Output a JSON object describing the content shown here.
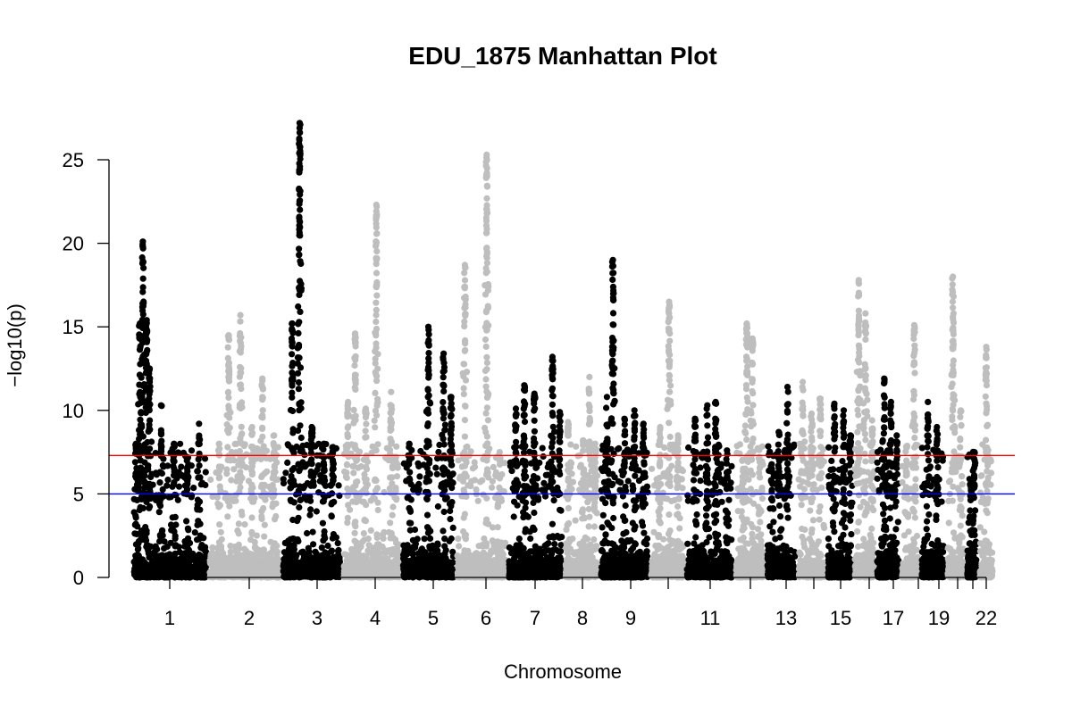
{
  "chart_data": {
    "type": "scatter",
    "title": "EDU_1875 Manhattan Plot",
    "xlabel": "Chromosome",
    "ylabel": "−log10(p)",
    "ylim": [
      0,
      27.5
    ],
    "y_ticks": [
      0,
      5,
      10,
      15,
      20,
      25
    ],
    "x_tick_labels": [
      "1",
      "2",
      "3",
      "4",
      "5",
      "6",
      "7",
      "8",
      "9",
      "",
      "11",
      "",
      "13",
      "",
      "15",
      "",
      "17",
      "",
      "19",
      "",
      "",
      "22"
    ],
    "colors": [
      "#000000",
      "#bebebe"
    ],
    "suggestive_line": {
      "y": 5.0,
      "color": "#0000ff"
    },
    "genomewide_line": {
      "y": 7.3,
      "color": "#ff0000"
    },
    "grid": false,
    "series": [
      {
        "chromosome": "1",
        "peaks": [
          {
            "x": 0.14,
            "y": 20.1
          },
          {
            "x": 0.1,
            "y": 15.2
          },
          {
            "x": 0.19,
            "y": 15.4
          },
          {
            "x": 0.23,
            "y": 12.5
          },
          {
            "x": 0.38,
            "y": 10.3
          },
          {
            "x": 0.05,
            "y": 8.0
          },
          {
            "x": 0.55,
            "y": 8.0
          },
          {
            "x": 0.72,
            "y": 7.0
          },
          {
            "x": 0.88,
            "y": 9.2
          }
        ]
      },
      {
        "chromosome": "2",
        "peaks": [
          {
            "x": 0.15,
            "y": 8.0
          },
          {
            "x": 0.28,
            "y": 14.5
          },
          {
            "x": 0.44,
            "y": 15.7
          },
          {
            "x": 0.6,
            "y": 9.0
          },
          {
            "x": 0.74,
            "y": 11.9
          },
          {
            "x": 0.9,
            "y": 8.5
          }
        ]
      },
      {
        "chromosome": "3",
        "peaks": [
          {
            "x": 0.18,
            "y": 15.2
          },
          {
            "x": 0.3,
            "y": 27.2
          },
          {
            "x": 0.5,
            "y": 9.0
          },
          {
            "x": 0.7,
            "y": 8.0
          },
          {
            "x": 0.85,
            "y": 7.8
          }
        ]
      },
      {
        "chromosome": "4",
        "peaks": [
          {
            "x": 0.1,
            "y": 10.5
          },
          {
            "x": 0.22,
            "y": 14.6
          },
          {
            "x": 0.4,
            "y": 10.1
          },
          {
            "x": 0.58,
            "y": 22.3
          },
          {
            "x": 0.83,
            "y": 11.1
          }
        ]
      },
      {
        "chromosome": "5",
        "peaks": [
          {
            "x": 0.15,
            "y": 8.0
          },
          {
            "x": 0.5,
            "y": 15.0
          },
          {
            "x": 0.78,
            "y": 13.4
          },
          {
            "x": 0.92,
            "y": 10.8
          }
        ]
      },
      {
        "chromosome": "6",
        "peaks": [
          {
            "x": 0.18,
            "y": 18.7
          },
          {
            "x": 0.6,
            "y": 25.3
          },
          {
            "x": 0.85,
            "y": 7.5
          }
        ]
      },
      {
        "chromosome": "7",
        "peaks": [
          {
            "x": 0.15,
            "y": 10.1
          },
          {
            "x": 0.3,
            "y": 11.5
          },
          {
            "x": 0.48,
            "y": 11.0
          },
          {
            "x": 0.8,
            "y": 13.2
          },
          {
            "x": 0.93,
            "y": 9.9
          }
        ]
      },
      {
        "chromosome": "8",
        "peaks": [
          {
            "x": 0.12,
            "y": 9.3
          },
          {
            "x": 0.55,
            "y": 8.2
          },
          {
            "x": 0.72,
            "y": 12.0
          },
          {
            "x": 0.88,
            "y": 8.0
          }
        ]
      },
      {
        "chromosome": "9",
        "peaks": [
          {
            "x": 0.15,
            "y": 10.8
          },
          {
            "x": 0.27,
            "y": 19.0
          },
          {
            "x": 0.5,
            "y": 9.5
          },
          {
            "x": 0.7,
            "y": 10.0
          },
          {
            "x": 0.88,
            "y": 9.2
          }
        ]
      },
      {
        "chromosome": "10",
        "peaks": [
          {
            "x": 0.3,
            "y": 9.0
          },
          {
            "x": 0.55,
            "y": 16.5
          },
          {
            "x": 0.8,
            "y": 8.5
          }
        ]
      },
      {
        "chromosome": "11",
        "peaks": [
          {
            "x": 0.2,
            "y": 9.5
          },
          {
            "x": 0.45,
            "y": 10.3
          },
          {
            "x": 0.62,
            "y": 10.5
          },
          {
            "x": 0.85,
            "y": 7.6
          }
        ]
      },
      {
        "chromosome": "12",
        "peaks": [
          {
            "x": 0.28,
            "y": 6.5
          },
          {
            "x": 0.4,
            "y": 15.2
          },
          {
            "x": 0.58,
            "y": 14.3
          },
          {
            "x": 0.8,
            "y": 7.2
          }
        ]
      },
      {
        "chromosome": "13",
        "peaks": [
          {
            "x": 0.2,
            "y": 6.5
          },
          {
            "x": 0.42,
            "y": 8.7
          },
          {
            "x": 0.7,
            "y": 11.4
          }
        ]
      },
      {
        "chromosome": "14",
        "peaks": [
          {
            "x": 0.2,
            "y": 11.7
          },
          {
            "x": 0.5,
            "y": 9.8
          },
          {
            "x": 0.8,
            "y": 10.7
          }
        ]
      },
      {
        "chromosome": "15",
        "peaks": [
          {
            "x": 0.3,
            "y": 10.4
          },
          {
            "x": 0.65,
            "y": 10.0
          },
          {
            "x": 0.9,
            "y": 8.5
          }
        ]
      },
      {
        "chromosome": "16",
        "peaks": [
          {
            "x": 0.25,
            "y": 17.8
          },
          {
            "x": 0.55,
            "y": 15.8
          },
          {
            "x": 0.85,
            "y": 9.4
          }
        ]
      },
      {
        "chromosome": "17",
        "peaks": [
          {
            "x": 0.35,
            "y": 11.9
          },
          {
            "x": 0.62,
            "y": 10.5
          },
          {
            "x": 0.85,
            "y": 8.5
          }
        ]
      },
      {
        "chromosome": "18",
        "peaks": [
          {
            "x": 0.3,
            "y": 7.0
          },
          {
            "x": 0.7,
            "y": 15.1
          }
        ]
      },
      {
        "chromosome": "19",
        "peaks": [
          {
            "x": 0.3,
            "y": 10.5
          },
          {
            "x": 0.65,
            "y": 9.0
          }
        ]
      },
      {
        "chromosome": "20",
        "peaks": [
          {
            "x": 0.35,
            "y": 18.0
          },
          {
            "x": 0.75,
            "y": 10.0
          }
        ]
      },
      {
        "chromosome": "21",
        "peaks": [
          {
            "x": 0.4,
            "y": 5.6
          },
          {
            "x": 0.7,
            "y": 7.5
          }
        ]
      },
      {
        "chromosome": "22",
        "peaks": [
          {
            "x": 0.5,
            "y": 13.8
          }
        ]
      }
    ]
  }
}
